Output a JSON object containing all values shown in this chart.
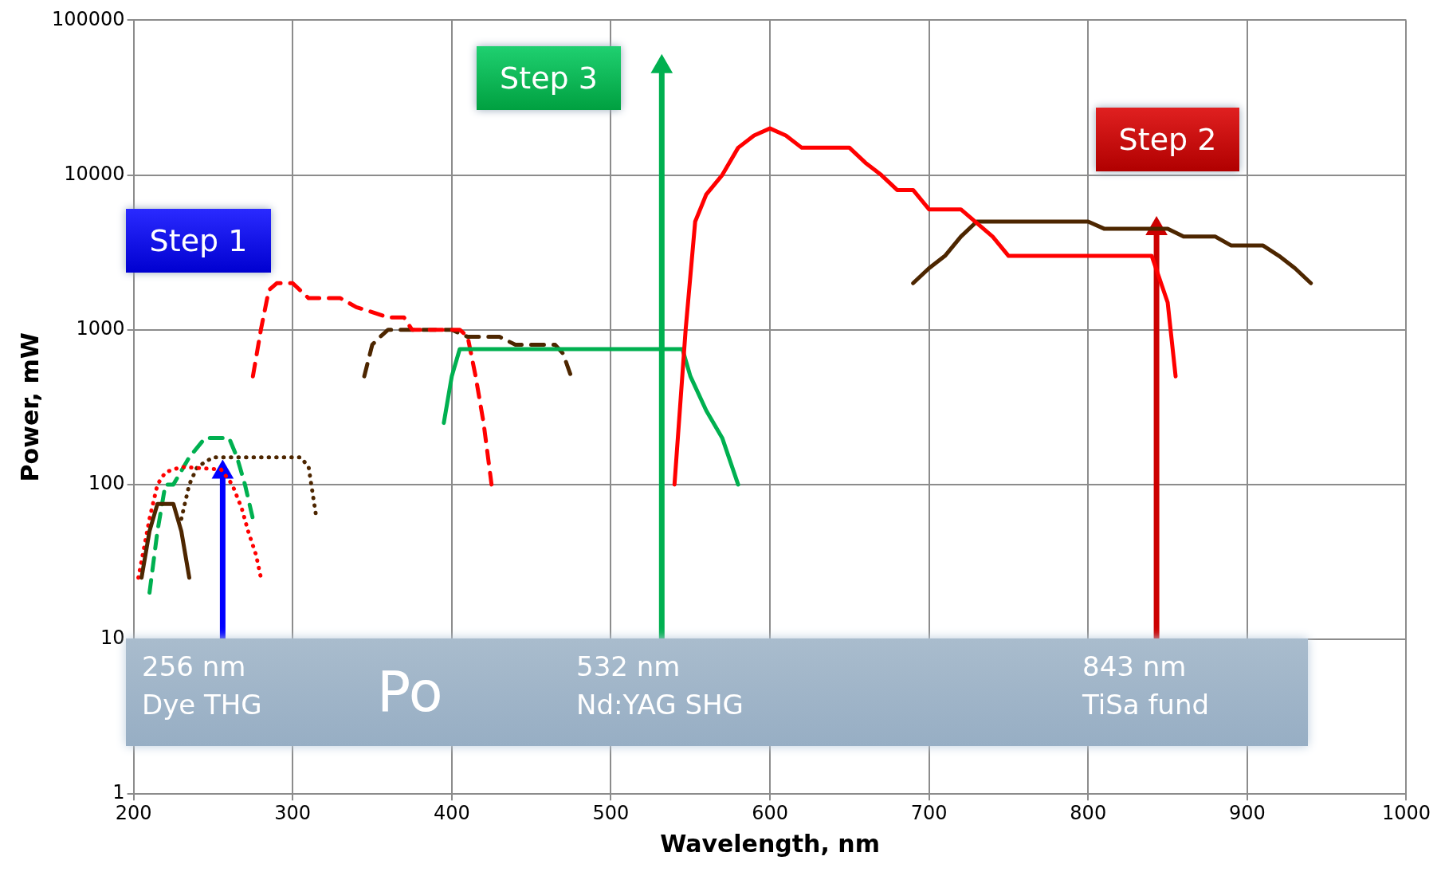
{
  "chart_data": {
    "type": "line",
    "xlabel": "Wavelength, nm",
    "ylabel": "Power, mW",
    "log": "y",
    "grid": true,
    "legend": false,
    "marker": "none",
    "xlim": [
      200,
      1000
    ],
    "xticks": [
      200,
      300,
      400,
      500,
      600,
      700,
      800,
      900,
      1000
    ],
    "ylim": [
      1,
      100000
    ],
    "yticks": [
      1,
      10,
      100,
      1000,
      10000,
      100000
    ],
    "series": [
      {
        "color": "#ff0000",
        "line_style": "solid",
        "x": [
          540,
          547,
          553,
          560,
          570,
          580,
          590,
          600,
          610,
          620,
          650,
          660,
          670,
          680,
          690,
          700,
          720,
          740,
          750,
          840,
          850,
          855
        ],
        "values": [
          100,
          1000,
          5000,
          7500,
          10000,
          15000,
          18000,
          20000,
          18000,
          15000,
          15000,
          12000,
          10000,
          8000,
          8000,
          6000,
          6000,
          4000,
          3000,
          3000,
          1500,
          500
        ]
      },
      {
        "color": "#4d2600",
        "line_style": "solid",
        "x": [
          690,
          700,
          710,
          720,
          730,
          800,
          810,
          850,
          860,
          880,
          890,
          910,
          920,
          930,
          940
        ],
        "values": [
          2000,
          2500,
          3000,
          4000,
          5000,
          5000,
          4500,
          4500,
          4000,
          4000,
          3500,
          3500,
          3000,
          2500,
          2000
        ]
      },
      {
        "color": "#00b050",
        "line_style": "solid",
        "x": [
          395,
          400,
          405,
          545,
          550,
          560,
          570,
          580
        ],
        "values": [
          250,
          500,
          750,
          750,
          500,
          300,
          200,
          100
        ]
      },
      {
        "color": "#ff0000",
        "line_style": "dashed",
        "x": [
          275,
          280,
          285,
          290,
          300,
          310,
          320,
          330,
          340,
          350,
          360,
          370,
          375,
          405,
          410,
          415,
          420,
          425
        ],
        "values": [
          500,
          1000,
          1800,
          2000,
          2000,
          1600,
          1600,
          1600,
          1400,
          1300,
          1200,
          1200,
          1000,
          1000,
          900,
          500,
          250,
          100
        ]
      },
      {
        "color": "#4d2600",
        "line_style": "dashed",
        "x": [
          345,
          350,
          355,
          360,
          400,
          410,
          430,
          440,
          465,
          470,
          475
        ],
        "values": [
          500,
          800,
          900,
          1000,
          1000,
          900,
          900,
          800,
          800,
          700,
          500
        ]
      },
      {
        "color": "#4d2600",
        "line_style": "solid",
        "x": [
          205,
          210,
          215,
          225,
          230,
          235
        ],
        "values": [
          25,
          50,
          75,
          75,
          50,
          25
        ]
      },
      {
        "color": "#ff0000",
        "line_style": "dotted",
        "x": [
          203,
          210,
          215,
          220,
          230,
          255,
          262,
          268,
          272,
          277,
          280
        ],
        "values": [
          25,
          60,
          100,
          120,
          130,
          125,
          100,
          70,
          50,
          35,
          25
        ]
      },
      {
        "color": "#00b050",
        "line_style": "dashed",
        "x": [
          210,
          215,
          220,
          225,
          235,
          245,
          260,
          265,
          270,
          275
        ],
        "values": [
          20,
          50,
          100,
          100,
          150,
          200,
          200,
          150,
          100,
          60
        ]
      },
      {
        "color": "#4d2600",
        "line_style": "dotted",
        "x": [
          230,
          235,
          240,
          250,
          290,
          305,
          310,
          315
        ],
        "values": [
          60,
          100,
          130,
          150,
          150,
          150,
          130,
          60
        ]
      },
      {
        "color": "#0000ff",
        "line_style": "solid",
        "marker": "triangle",
        "x": [
          256,
          256
        ],
        "values": [
          10,
          120
        ]
      },
      {
        "color": "#00b050",
        "line_style": "solid",
        "marker": "triangle",
        "x": [
          532,
          532
        ],
        "values": [
          10,
          50000
        ]
      },
      {
        "color": "#cc0000",
        "line_style": "solid",
        "marker": "triangle",
        "x": [
          843,
          843
        ],
        "values": [
          10,
          4500
        ]
      }
    ],
    "annotations": [
      "Step 1",
      "Step 3",
      "Step 2",
      "256 nm\nDye THG",
      "Po",
      "532 nm\nNd:YAG SHG",
      "843 nm\nTiSa fund"
    ]
  }
}
